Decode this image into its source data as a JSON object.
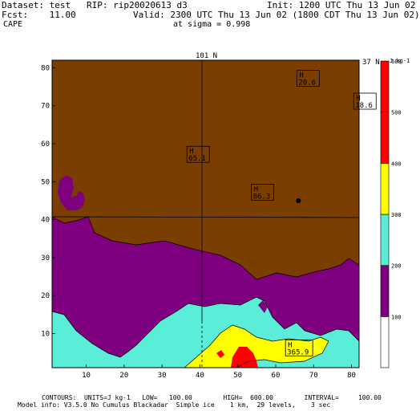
{
  "header": {
    "dataset": "Dataset: test   RIP: rip20020613 d3",
    "init": "Init: 1200 UTC Thu 13 Jun 02",
    "fcst": "Fcst:    11.00",
    "valid": "Valid: 2300 UTC Thu 13 Jun 02 (1800 CDT Thu 13 Jun 02)",
    "field": "CAPE",
    "sigma": "at sigma = 0.998"
  },
  "map": {
    "top_label": "101 N",
    "right_label": "37 N",
    "x_ticks": [
      "10",
      "20",
      "30",
      "40",
      "50",
      "60",
      "70",
      "80"
    ],
    "y_ticks": [
      "10",
      "20",
      "30",
      "40",
      "50",
      "60",
      "70",
      "80"
    ],
    "highs": [
      {
        "symbol": "H",
        "value": "20.6",
        "x": 66,
        "y": 77
      },
      {
        "symbol": "H",
        "value": "18.6",
        "x": 81,
        "y": 71
      },
      {
        "symbol": "H",
        "value": "65.1",
        "x": 37,
        "y": 57
      },
      {
        "symbol": "H",
        "value": "86.3",
        "x": 54,
        "y": 47
      },
      {
        "symbol": "H",
        "value": "365.9",
        "x": 63,
        "y": 6
      }
    ],
    "marker_point": {
      "x": 66,
      "y": 45
    },
    "colors": {
      "brown": "#7a3e00",
      "purple": "#7f007f",
      "cyan": "#5aeed8",
      "yellow": "#ffff00",
      "red": "#ff0000",
      "white": "#ffffff"
    }
  },
  "colorbar": {
    "unit": "J kg-1",
    "levels": [
      "100",
      "200",
      "300",
      "400",
      "500",
      "600"
    ],
    "bands": [
      "#ffffff",
      "#7f007f",
      "#5aeed8",
      "#ffff00",
      "#ff0000",
      "#ff0000"
    ]
  },
  "footer": {
    "contours": "CONTOURS:  UNITS=J kg-1   LOW=   100.00        HIGH=  600.00        INTERVAL=     100.00",
    "model_info": "Model info: V3.5.0 No Cumulus Blackadar  Simple ice    1 km,  29 levels,    3 sec"
  }
}
